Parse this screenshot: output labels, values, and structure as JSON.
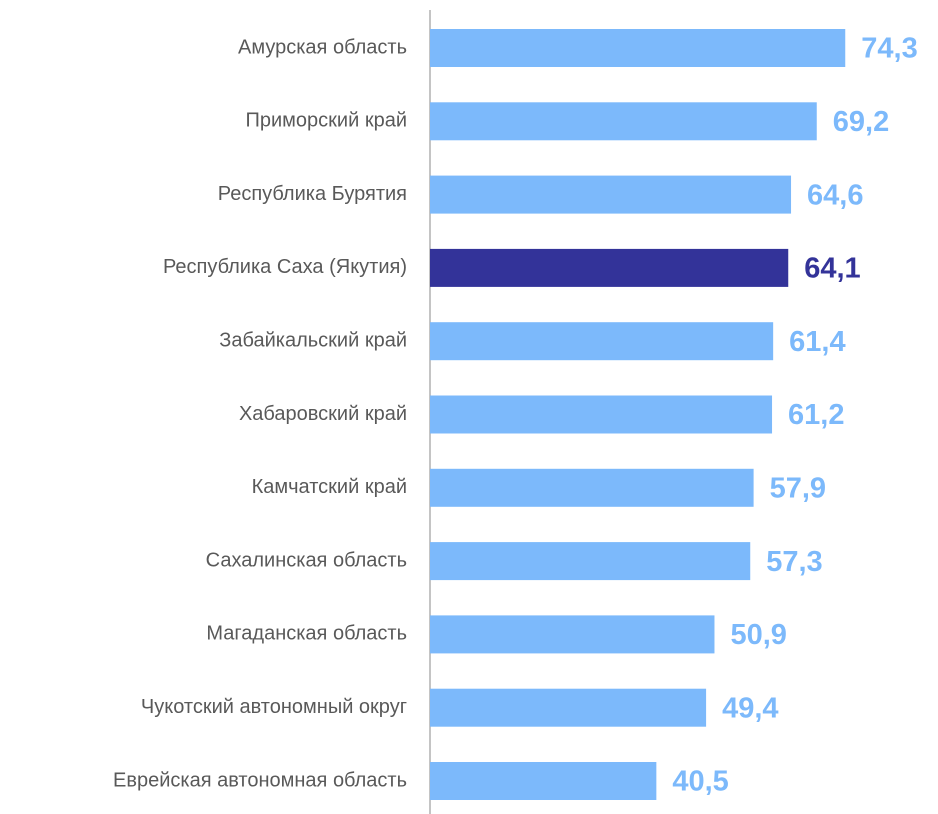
{
  "chart_data": {
    "type": "bar",
    "orientation": "horizontal",
    "categories": [
      "Амурская область",
      "Приморский край",
      "Республика Бурятия",
      "Республика Саха (Якутия)",
      "Забайкальский край",
      "Хабаровский край",
      "Камчатский край",
      "Сахалинская область",
      "Магаданская область",
      "Чукотский автономный округ",
      "Еврейская автономная область"
    ],
    "values": [
      74.3,
      69.2,
      64.6,
      64.1,
      61.4,
      61.2,
      57.9,
      57.3,
      50.9,
      49.4,
      40.5
    ],
    "value_labels": [
      "74,3",
      "69,2",
      "64,6",
      "64,1",
      "61,4",
      "61,2",
      "57,9",
      "57,3",
      "50,9",
      "49,4",
      "40,5"
    ],
    "colors": [
      "#7cb9fb",
      "#7cb9fb",
      "#7cb9fb",
      "#333399",
      "#7cb9fb",
      "#7cb9fb",
      "#7cb9fb",
      "#7cb9fb",
      "#7cb9fb",
      "#7cb9fb",
      "#7cb9fb"
    ],
    "xlim": [
      0,
      90
    ]
  }
}
